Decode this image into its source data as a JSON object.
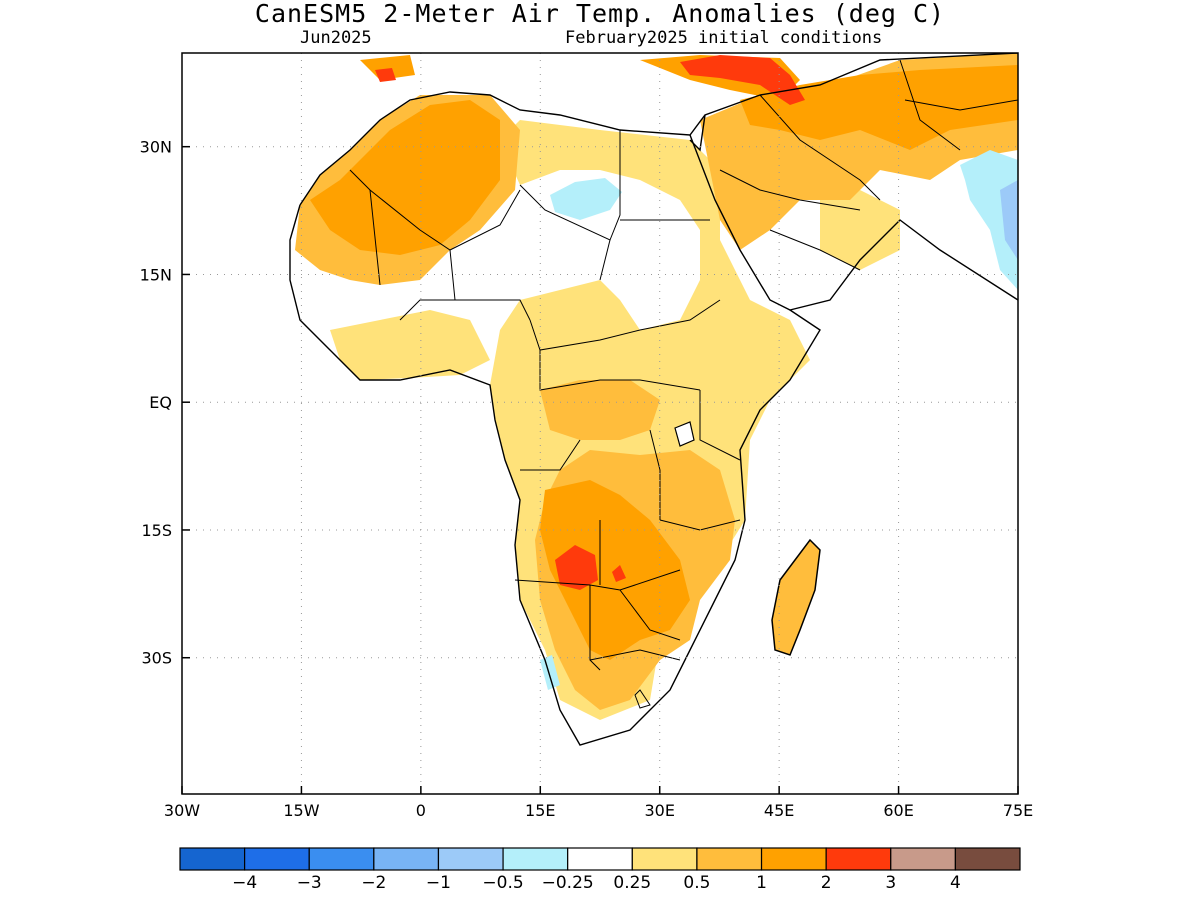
{
  "header": {
    "title": "CanESM5 2-Meter Air Temp. Anomalies (deg C)",
    "subtitle_left": "Jun2025",
    "subtitle_right": "February2025 initial conditions"
  },
  "map": {
    "lon_range": [
      -30,
      75
    ],
    "lat_range": [
      -46,
      41
    ],
    "lon_ticks": [
      {
        "value": -30,
        "label": "30W"
      },
      {
        "value": -15,
        "label": "15W"
      },
      {
        "value": 0,
        "label": "0"
      },
      {
        "value": 15,
        "label": "15E"
      },
      {
        "value": 30,
        "label": "30E"
      },
      {
        "value": 45,
        "label": "45E"
      },
      {
        "value": 60,
        "label": "60E"
      },
      {
        "value": 75,
        "label": "75E"
      }
    ],
    "lat_ticks": [
      {
        "value": 30,
        "label": "30N"
      },
      {
        "value": 15,
        "label": "15N"
      },
      {
        "value": 0,
        "label": "EQ"
      },
      {
        "value": -15,
        "label": "15S"
      },
      {
        "value": -30,
        "label": "30S"
      }
    ],
    "grid": "dotted",
    "colors": {
      "land_outline": "#000000",
      "ocean": "#ffffff",
      "grid": "#999999"
    }
  },
  "colorbar": {
    "colors": [
      "#1565d0",
      "#1e6ee8",
      "#3a8ef0",
      "#78b4f5",
      "#9ccaf8",
      "#b4effa",
      "#ffffff",
      "#ffe27a",
      "#ffbd3c",
      "#ffa100",
      "#ff3a0c",
      "#c89a8a",
      "#784c3e"
    ],
    "labels": [
      "-4",
      "-3",
      "-2",
      "-1",
      "-0.5",
      "-0.25",
      "0.25",
      "0.5",
      "1",
      "2",
      "3",
      "4"
    ]
  }
}
